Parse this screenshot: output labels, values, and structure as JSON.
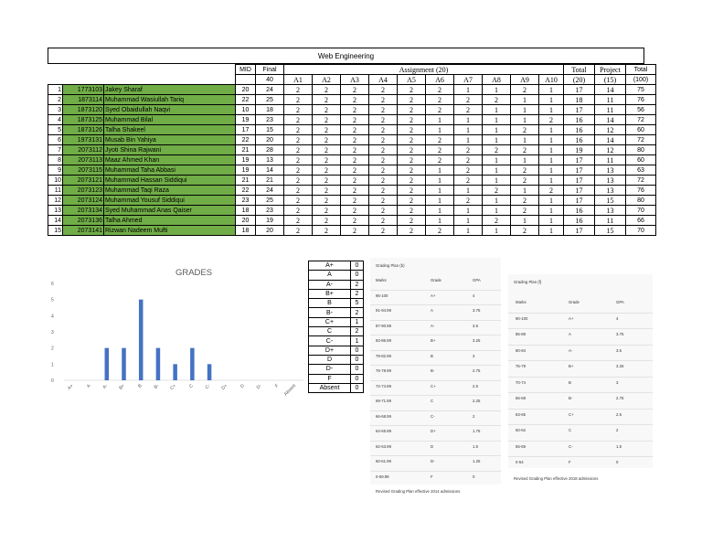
{
  "sheet_title": "Web Engineering",
  "headers": {
    "mid": "MID",
    "final": "Final",
    "final_max": "40",
    "assignment_group": "Assignment (20)",
    "assignments": [
      "A1",
      "A2",
      "A3",
      "A4",
      "A5",
      "A6",
      "A7",
      "A8",
      "A9",
      "A10"
    ],
    "total": "Total",
    "total_max": "(20)",
    "project": "Project",
    "project_max": "(15)",
    "grand_total": "Total",
    "grand_total_max": "(100)"
  },
  "students": [
    {
      "n": "1",
      "roll": "1773103",
      "name": "Jakey Sharaf",
      "mid": "20",
      "final": "24",
      "a": [
        "2",
        "2",
        "2",
        "2",
        "2",
        "2",
        "1",
        "1",
        "2",
        "1"
      ],
      "total": "17",
      "project": "14",
      "grand": "75"
    },
    {
      "n": "2",
      "roll": "1873114",
      "name": "Muhammad Wasiullah Tariq",
      "mid": "22",
      "final": "25",
      "a": [
        "2",
        "2",
        "2",
        "2",
        "2",
        "2",
        "2",
        "2",
        "1",
        "1"
      ],
      "total": "18",
      "project": "11",
      "grand": "76"
    },
    {
      "n": "3",
      "roll": "1873120",
      "name": "Syed Obaidullah Naqvi",
      "mid": "10",
      "final": "18",
      "a": [
        "2",
        "2",
        "2",
        "2",
        "2",
        "2",
        "2",
        "1",
        "1",
        "1"
      ],
      "total": "17",
      "project": "11",
      "grand": "56"
    },
    {
      "n": "4",
      "roll": "1873125",
      "name": "Muhammad Bilal",
      "mid": "19",
      "final": "23",
      "a": [
        "2",
        "2",
        "2",
        "2",
        "2",
        "1",
        "1",
        "1",
        "1",
        "2"
      ],
      "total": "16",
      "project": "14",
      "grand": "72"
    },
    {
      "n": "5",
      "roll": "1873126",
      "name": "Talha Shakeel",
      "mid": "17",
      "final": "15",
      "a": [
        "2",
        "2",
        "2",
        "2",
        "2",
        "1",
        "1",
        "1",
        "2",
        "1"
      ],
      "total": "16",
      "project": "12",
      "grand": "60"
    },
    {
      "n": "6",
      "roll": "1973131",
      "name": "Musab Bin Yahiya",
      "mid": "22",
      "final": "20",
      "a": [
        "2",
        "2",
        "2",
        "2",
        "2",
        "2",
        "1",
        "1",
        "1",
        "1"
      ],
      "total": "16",
      "project": "14",
      "grand": "72"
    },
    {
      "n": "7",
      "roll": "2073112",
      "name": "Jyoti Shina Rajwani",
      "mid": "21",
      "final": "28",
      "a": [
        "2",
        "2",
        "2",
        "2",
        "2",
        "2",
        "2",
        "2",
        "2",
        "1"
      ],
      "total": "19",
      "project": "12",
      "grand": "80"
    },
    {
      "n": "8",
      "roll": "2073113",
      "name": "Maaz Ahmed Khan",
      "mid": "19",
      "final": "13",
      "a": [
        "2",
        "2",
        "2",
        "2",
        "2",
        "2",
        "2",
        "1",
        "1",
        "1"
      ],
      "total": "17",
      "project": "11",
      "grand": "60"
    },
    {
      "n": "9",
      "roll": "2073115",
      "name": "Muhammad Taha Abbasi",
      "mid": "19",
      "final": "14",
      "a": [
        "2",
        "2",
        "2",
        "2",
        "2",
        "1",
        "2",
        "1",
        "2",
        "1"
      ],
      "total": "17",
      "project": "13",
      "grand": "63"
    },
    {
      "n": "10",
      "roll": "2073121",
      "name": "Muhammad Hassan Siddiqui",
      "mid": "21",
      "final": "21",
      "a": [
        "2",
        "2",
        "2",
        "2",
        "2",
        "1",
        "2",
        "1",
        "2",
        "1"
      ],
      "total": "17",
      "project": "13",
      "grand": "72"
    },
    {
      "n": "11",
      "roll": "2073123",
      "name": "Muhammad Taqi Raza",
      "mid": "22",
      "final": "24",
      "a": [
        "2",
        "2",
        "2",
        "2",
        "2",
        "1",
        "1",
        "2",
        "1",
        "2"
      ],
      "total": "17",
      "project": "13",
      "grand": "76"
    },
    {
      "n": "12",
      "roll": "2073124",
      "name": "Muhammad Yousuf Siddiqui",
      "mid": "23",
      "final": "25",
      "a": [
        "2",
        "2",
        "2",
        "2",
        "2",
        "1",
        "2",
        "1",
        "2",
        "1"
      ],
      "total": "17",
      "project": "15",
      "grand": "80"
    },
    {
      "n": "13",
      "roll": "2073134",
      "name": "Syed Muhammad Anas Qaiser",
      "mid": "18",
      "final": "23",
      "a": [
        "2",
        "2",
        "2",
        "2",
        "2",
        "1",
        "1",
        "1",
        "2",
        "1"
      ],
      "total": "16",
      "project": "13",
      "grand": "70"
    },
    {
      "n": "14",
      "roll": "2073136",
      "name": "Talha Ahmed",
      "mid": "20",
      "final": "19",
      "a": [
        "2",
        "2",
        "2",
        "2",
        "2",
        "1",
        "1",
        "2",
        "1",
        "1"
      ],
      "total": "16",
      "project": "11",
      "grand": "66"
    },
    {
      "n": "15",
      "roll": "2073141",
      "name": "Rizwan Nadeem Mufti",
      "mid": "18",
      "final": "20",
      "a": [
        "2",
        "2",
        "2",
        "2",
        "2",
        "2",
        "1",
        "1",
        "2",
        "1"
      ],
      "total": "17",
      "project": "15",
      "grand": "70"
    }
  ],
  "chart_data": {
    "type": "bar",
    "title": "GRADES",
    "categories": [
      "A+",
      "A",
      "A-",
      "B+",
      "B",
      "B-",
      "C+",
      "C",
      "C-",
      "D+",
      "D",
      "D-",
      "F",
      "Absent"
    ],
    "values": [
      0,
      0,
      2,
      2,
      5,
      2,
      1,
      2,
      1,
      0,
      0,
      0,
      0,
      0
    ],
    "ylim": [
      0,
      6
    ],
    "yticks": [
      "0",
      "1",
      "2",
      "3",
      "4",
      "5",
      "6"
    ],
    "bar_color": "#4472c4"
  },
  "grade_counts": [
    {
      "grade": "A+",
      "count": "0"
    },
    {
      "grade": "A",
      "count": "0"
    },
    {
      "grade": "A-",
      "count": "2"
    },
    {
      "grade": "B+",
      "count": "2"
    },
    {
      "grade": "B",
      "count": "5"
    },
    {
      "grade": "B-",
      "count": "2"
    },
    {
      "grade": "C+",
      "count": "1"
    },
    {
      "grade": "C",
      "count": "2"
    },
    {
      "grade": "C-",
      "count": "1"
    },
    {
      "grade": "D+",
      "count": "0"
    },
    {
      "grade": "D",
      "count": "0"
    },
    {
      "grade": "D-",
      "count": "0"
    },
    {
      "grade": "F",
      "count": "0"
    },
    {
      "grade": "Absent",
      "count": "0"
    }
  ],
  "plan_old": {
    "title": "Grading Plan (b)",
    "headers": [
      "Marks",
      "Grade",
      "GPA"
    ],
    "rows": [
      [
        "95-100",
        "A+",
        "4"
      ],
      [
        "91-94.99",
        "A",
        "3.75"
      ],
      [
        "87-90.99",
        "A-",
        "3.5"
      ],
      [
        "83-86.99",
        "B+",
        "3.25"
      ],
      [
        "79-82.99",
        "B",
        "3"
      ],
      [
        "75-78.99",
        "B-",
        "2.75"
      ],
      [
        "72-74.99",
        "C+",
        "2.5"
      ],
      [
        "69-71.99",
        "C",
        "2.25"
      ],
      [
        "66-68.99",
        "C-",
        "2"
      ],
      [
        "64-65.99",
        "D+",
        "1.75"
      ],
      [
        "62-63.99",
        "D",
        "1.5"
      ],
      [
        "60-61.99",
        "D-",
        "1.25"
      ],
      [
        "0-59.99",
        "F",
        "0"
      ]
    ],
    "footer": "Revised Grading Plan effective 2014 admissions"
  },
  "plan_new": {
    "title": "Grading Plan (f)",
    "headers": [
      "Marks",
      "Grade",
      "GPA"
    ],
    "rows": [
      [
        "90-100",
        "A+",
        "4"
      ],
      [
        "85-89",
        "A",
        "3.75"
      ],
      [
        "80-84",
        "A-",
        "3.5"
      ],
      [
        "75-79",
        "B+",
        "3.25"
      ],
      [
        "70-74",
        "B",
        "3"
      ],
      [
        "66-69",
        "B-",
        "2.75"
      ],
      [
        "63-65",
        "C+",
        "2.5"
      ],
      [
        "60-62",
        "C",
        "2"
      ],
      [
        "55-59",
        "C-",
        "1.5"
      ],
      [
        "0-54",
        "F",
        "0"
      ]
    ],
    "footer": "Revised Grading Plan effective 2018 admissions"
  }
}
